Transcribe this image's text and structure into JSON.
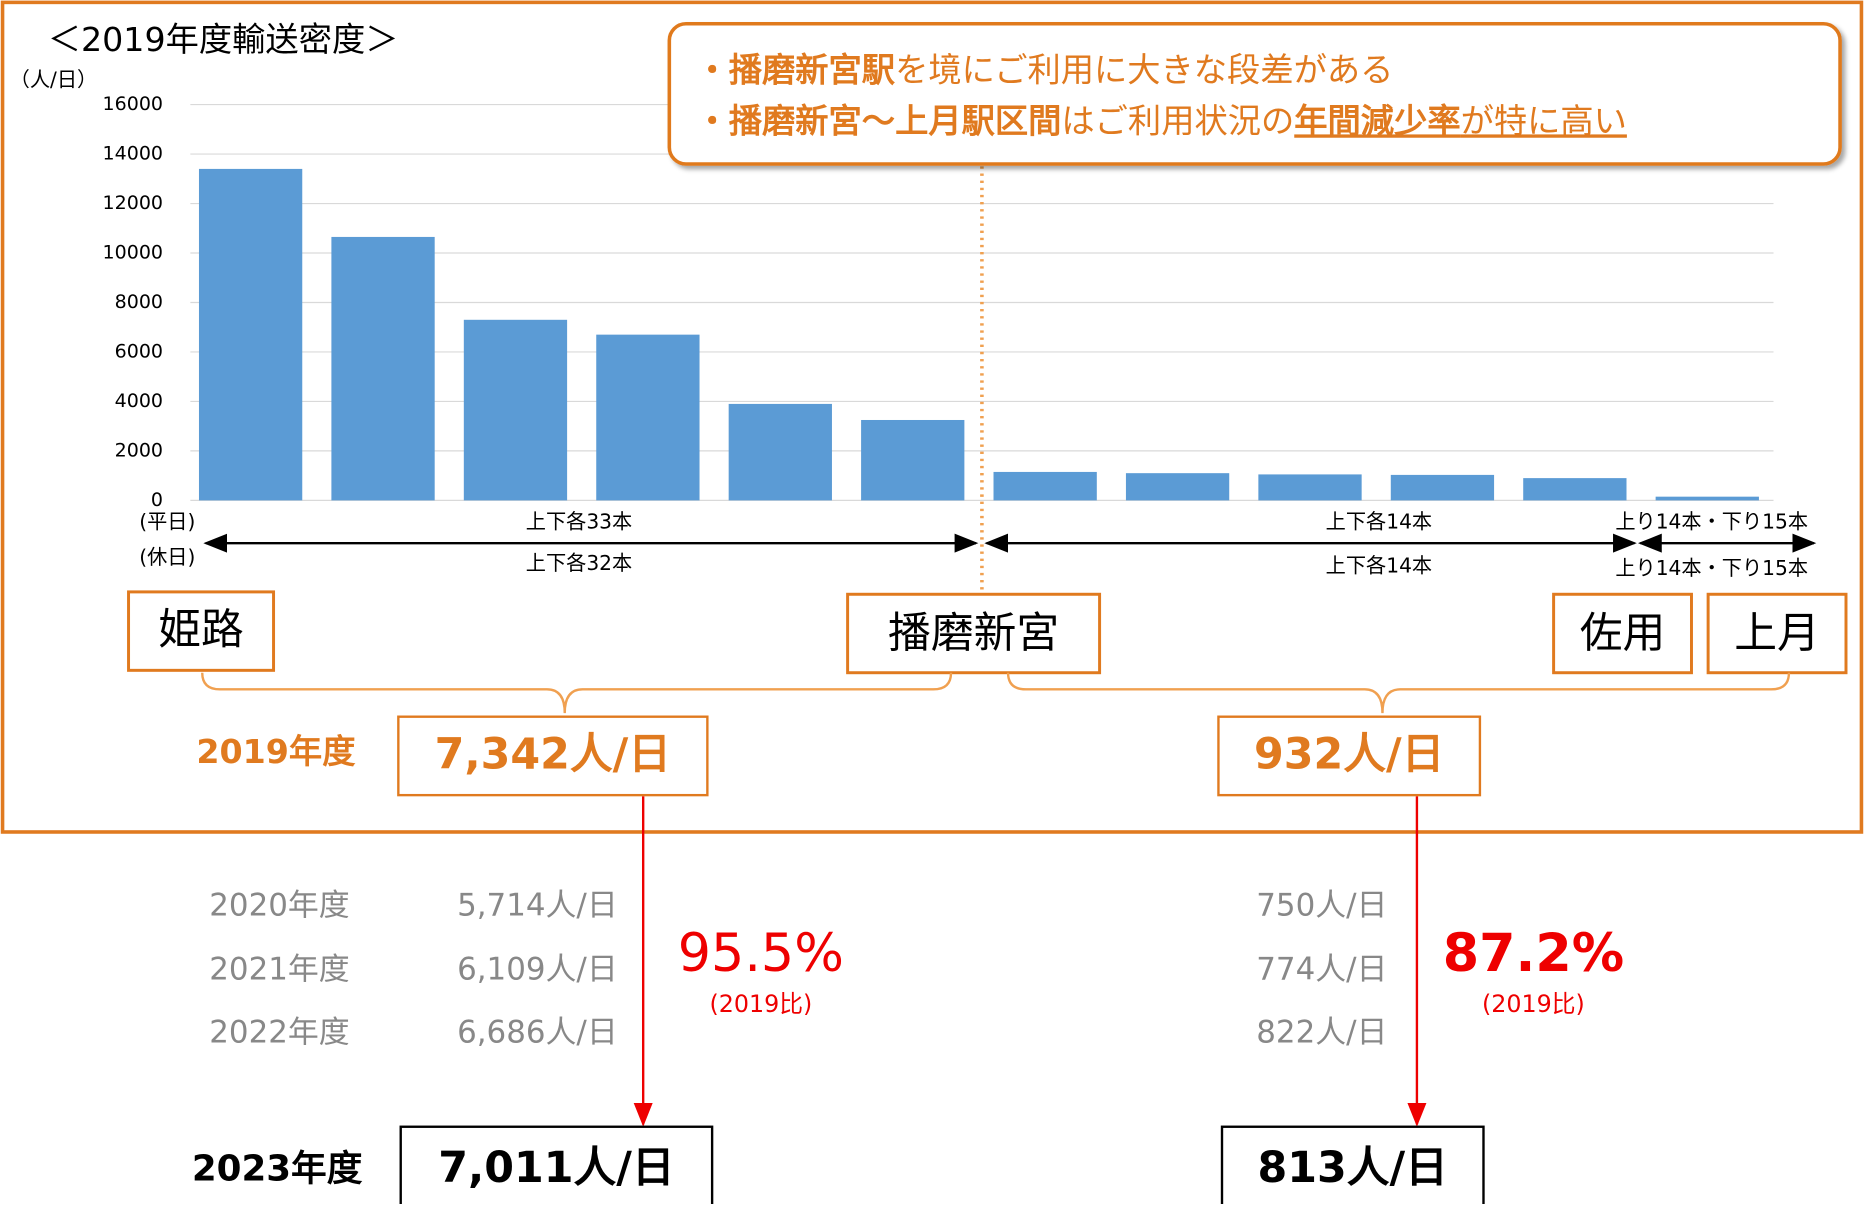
{
  "chart_data": {
    "type": "bar",
    "title": "＜2019年度輸送密度＞",
    "y_unit": "（人/日）",
    "values": [
      13400,
      10650,
      7300,
      6700,
      3900,
      3250,
      1150,
      1100,
      1050,
      1030,
      900,
      150
    ],
    "color": "#5b9bd5",
    "ylim": [
      0,
      16000
    ],
    "yticks": [
      0,
      2000,
      4000,
      6000,
      8000,
      10000,
      12000,
      14000,
      16000
    ],
    "grid": true
  },
  "callout": {
    "line1": [
      "・播磨新宮駅",
      "を境にご利用に大きな段差がある"
    ],
    "line2": [
      "・播磨新宮～上月駅区間",
      "はご利用状況の",
      "年間減少率",
      "が特に高い"
    ]
  },
  "service": {
    "weekday": "(平日)",
    "holiday": "(休日)",
    "seg1_weekday": "上下各33本",
    "seg1_holiday": "上下各32本",
    "seg2_weekday": "上下各14本",
    "seg2_holiday": "上下各14本",
    "seg3_weekday": "上り14本・下り15本",
    "seg3_holiday": "上り14本・下り15本"
  },
  "stations": [
    "姫路",
    "播磨新宮",
    "佐用",
    "上月"
  ],
  "summary": {
    "year2019": "2019年度",
    "left2019": "7,342人/日",
    "right2019": "932人/日",
    "years": [
      "2020年度",
      "2021年度",
      "2022年度"
    ],
    "left_values": [
      "5,714人/日",
      "6,109人/日",
      "6,686人/日"
    ],
    "right_values": [
      "750人/日",
      "774人/日",
      "822人/日"
    ],
    "left_ratio": "95.5%",
    "right_ratio": "87.2%",
    "ratio_note": "(2019比)",
    "year2023": "2023年度",
    "left2023": "7,011人/日",
    "right2023": "813人/日"
  }
}
